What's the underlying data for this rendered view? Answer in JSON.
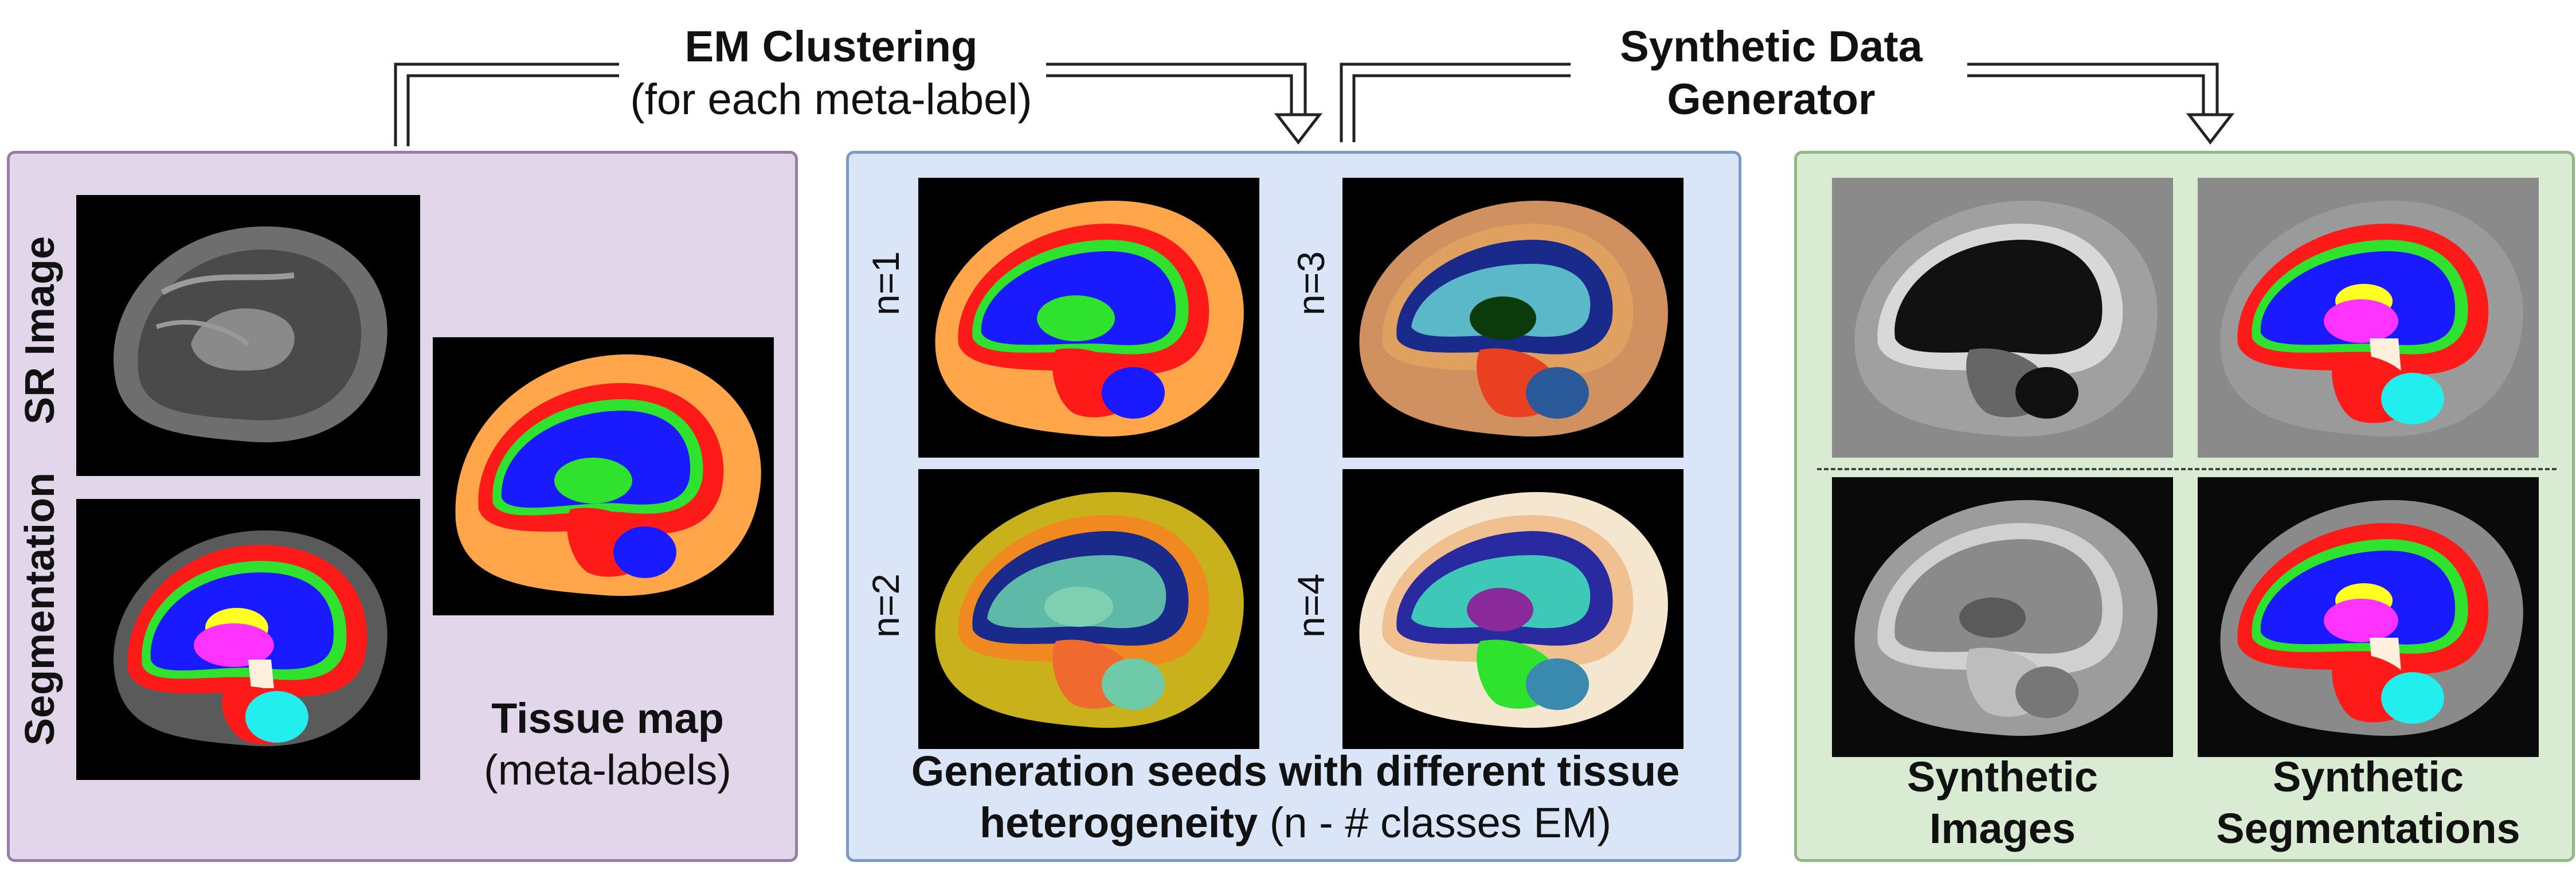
{
  "headers": {
    "em_title": "EM Clustering",
    "em_sub": "(for each meta-label)",
    "gen_line1": "Synthetic Data",
    "gen_line2": "Generator"
  },
  "panel1": {
    "row_label_top": "SR Image",
    "row_label_bottom": "Segmentation",
    "tissue_title": "Tissue map",
    "tissue_sub": "(meta-labels)"
  },
  "panel2": {
    "seeds": [
      "n=1",
      "n=2",
      "n=3",
      "n=4"
    ],
    "caption_line1": "Generation seeds with different tissue",
    "caption_bold": "heterogeneity",
    "caption_rest": " (n - # classes EM)"
  },
  "panel3": {
    "col1_line1": "Synthetic",
    "col1_line2": "Images",
    "col2_line1": "Synthetic",
    "col2_line2": "Segmentations"
  },
  "colors": {
    "panel1_bg": "#e2d6ea",
    "panel1_border": "#9a7cab",
    "panel2_bg": "#dae6f8",
    "panel2_border": "#7a9bc8",
    "panel3_bg": "#d9ebd3",
    "panel3_border": "#8fb883",
    "tissue_orange": "#ffa54a",
    "tissue_red": "#ff1a1a",
    "tissue_green": "#2ee22e",
    "tissue_blue": "#1a1aff",
    "tissue_magenta": "#ff33ff",
    "tissue_yellow": "#ffff22",
    "tissue_cyan": "#22eeee"
  }
}
